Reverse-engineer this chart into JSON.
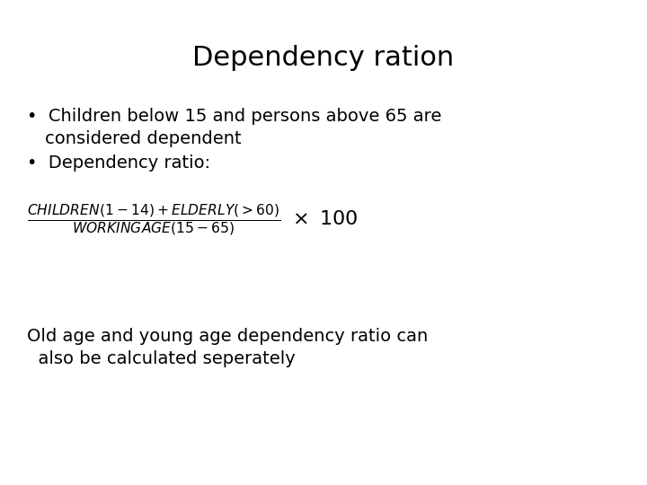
{
  "title": "Dependency ration",
  "title_fontsize": 22,
  "bullet1_line1": "Children below 15 and persons above 65 are",
  "bullet1_line2": "considered dependent",
  "bullet2": "Dependency ratio:",
  "footer_line1": "Old age and young age dependency ratio can",
  "footer_line2": "  also be calculated seperately",
  "background_color": "#ffffff",
  "text_color": "#000000",
  "bullet_fontsize": 14,
  "formula_fontsize": 13,
  "footer_fontsize": 14
}
